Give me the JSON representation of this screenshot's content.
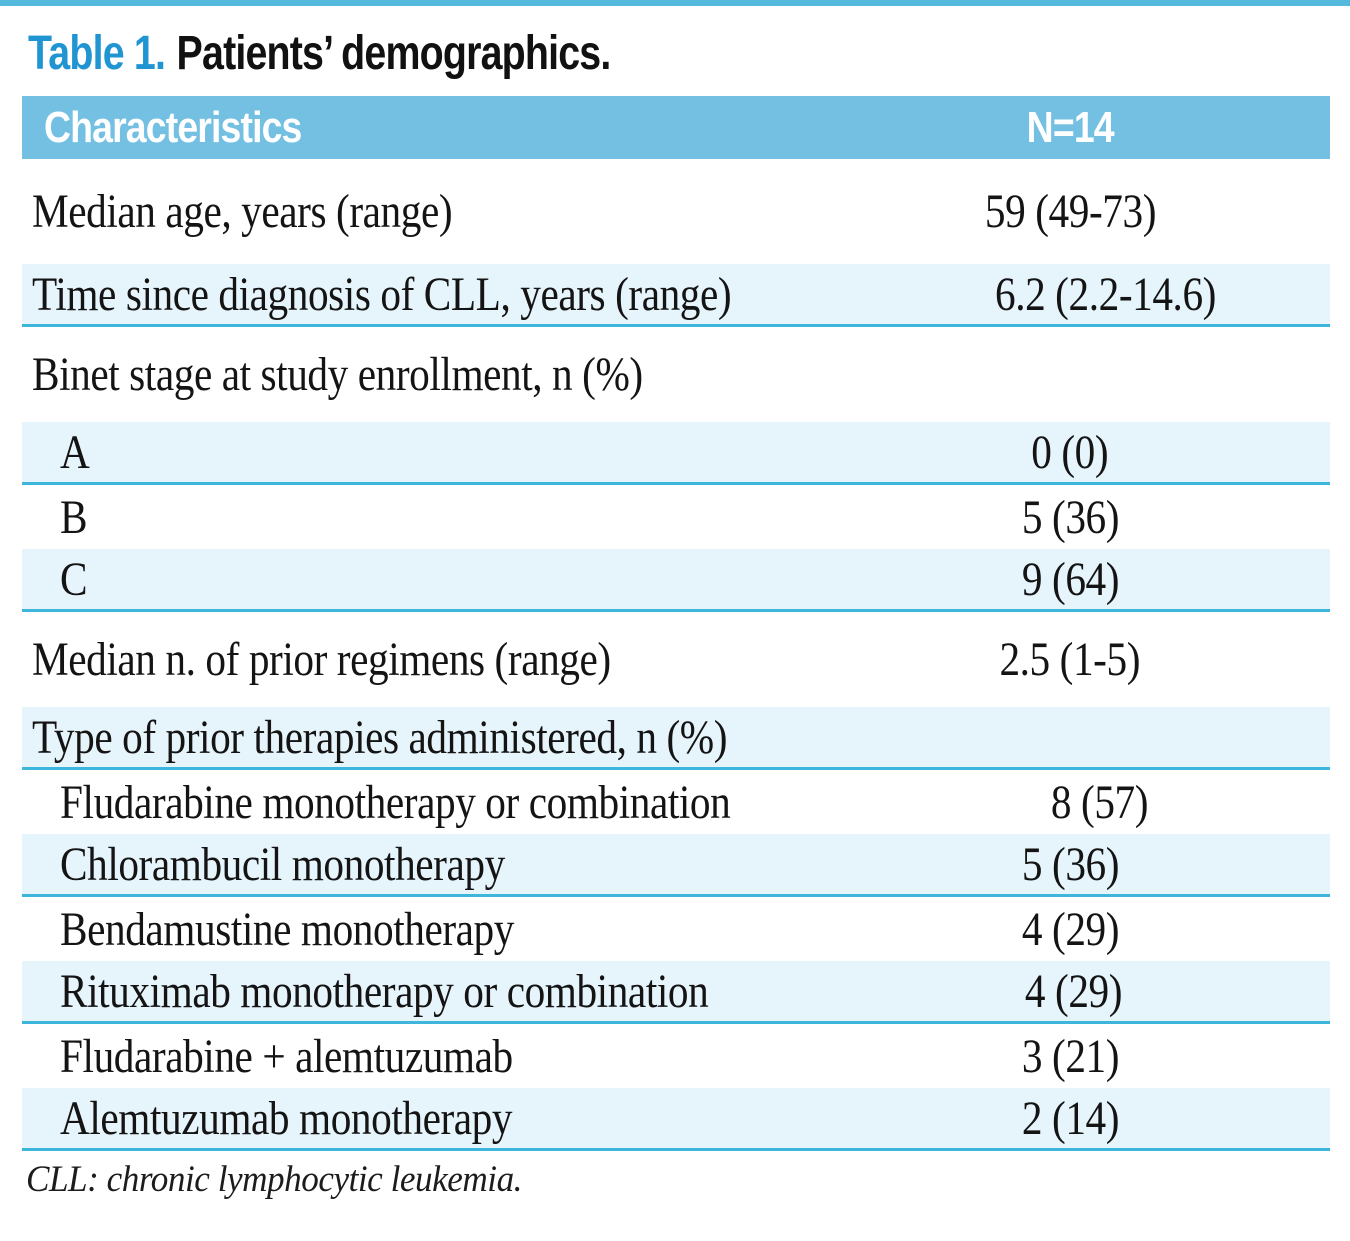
{
  "title": {
    "number": "Table 1.",
    "rest": "Patients’ demographics."
  },
  "table": {
    "header": {
      "characteristics": "Characteristics",
      "n": "N=14"
    },
    "rows": [
      {
        "label": "Median age, years (range)",
        "value": "59 (49-73)",
        "indent": false,
        "shaded": false,
        "size": "tall1"
      },
      {
        "label": "Time since diagnosis of CLL, years (range)",
        "value": "6.2 (2.2-14.6)",
        "indent": false,
        "shaded": true,
        "size": "normal"
      },
      {
        "label": "Binet stage at study enrollment, n (%)",
        "value": "",
        "indent": false,
        "shaded": false,
        "size": "tall"
      },
      {
        "label": "A",
        "value": "0 (0)",
        "indent": true,
        "shaded": true,
        "size": "normal"
      },
      {
        "label": "B",
        "value": "5 (36)",
        "indent": true,
        "shaded": false,
        "size": "normal"
      },
      {
        "label": "C",
        "value": "9 (64)",
        "indent": true,
        "shaded": true,
        "size": "normal"
      },
      {
        "label": "Median n. of prior regimens (range)",
        "value": "2.5 (1-5)",
        "indent": false,
        "shaded": false,
        "size": "tall"
      },
      {
        "label": "Type of prior therapies administered, n (%)",
        "value": "",
        "indent": false,
        "shaded": true,
        "size": "normal"
      },
      {
        "label": "Fludarabine monotherapy or combination",
        "value": "8 (57)",
        "indent": true,
        "shaded": false,
        "size": "normal"
      },
      {
        "label": "Chlorambucil monotherapy",
        "value": "5 (36)",
        "indent": true,
        "shaded": true,
        "size": "normal"
      },
      {
        "label": "Bendamustine monotherapy",
        "value": "4 (29)",
        "indent": true,
        "shaded": false,
        "size": "normal"
      },
      {
        "label": "Rituximab monotherapy or combination",
        "value": "4 (29)",
        "indent": true,
        "shaded": true,
        "size": "normal"
      },
      {
        "label": "Fludarabine + alemtuzumab",
        "value": "3 (21)",
        "indent": true,
        "shaded": false,
        "size": "normal"
      },
      {
        "label": "Alemtuzumab monotherapy",
        "value": "2 (14)",
        "indent": true,
        "shaded": true,
        "size": "normal"
      }
    ]
  },
  "footnote": "CLL: chronic lymphocytic leukemia.",
  "colors": {
    "top_rule": "#55b9dd",
    "title_blue": "#2095d2",
    "header_blue": "#74c0e3",
    "shaded_row": "#e6f4fb",
    "rule_cyan": "#3eb5db",
    "header_text": "#ffffff",
    "body_text": "#141414"
  }
}
